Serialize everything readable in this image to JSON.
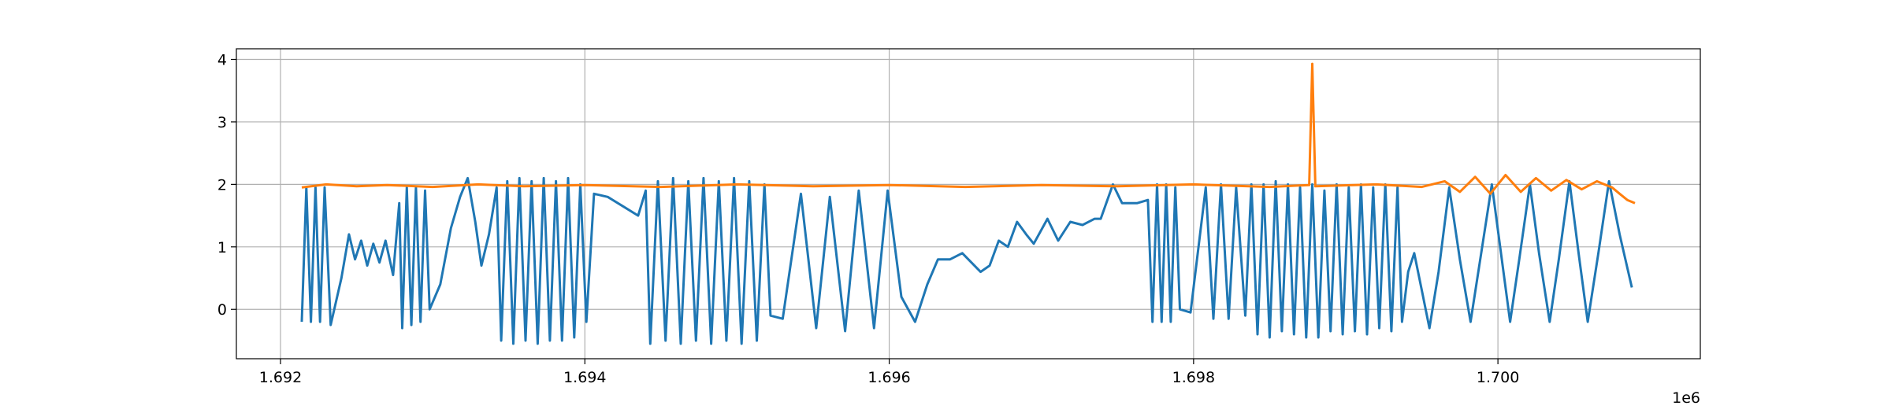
{
  "chart_data": {
    "type": "line",
    "x_offset_label": "1e6",
    "xlim": [
      1.69171,
      1.70133
    ],
    "ylim": [
      -0.79,
      4.17
    ],
    "xticks": [
      1.692,
      1.694,
      1.696,
      1.698,
      {
        "value": 1.7,
        "label": "1.700"
      }
    ],
    "yticks": [
      0,
      1,
      2,
      3,
      4
    ],
    "grid": true,
    "series": [
      {
        "color": "#1f77b4",
        "x": [
          1.69214,
          1.69217,
          1.6922,
          1.69223,
          1.69226,
          1.69229,
          1.69233,
          1.6924,
          1.69245,
          1.69249,
          1.69253,
          1.69257,
          1.69261,
          1.69265,
          1.69269,
          1.69274,
          1.69278,
          1.6928,
          1.69283,
          1.69286,
          1.69289,
          1.69292,
          1.69295,
          1.69298,
          1.69305,
          1.69312,
          1.69318,
          1.69323,
          1.69328,
          1.69332,
          1.69337,
          1.69342,
          1.69345,
          1.69349,
          1.69353,
          1.69357,
          1.69361,
          1.69365,
          1.69369,
          1.69373,
          1.69377,
          1.69381,
          1.69385,
          1.69389,
          1.69393,
          1.69397,
          1.69401,
          1.69406,
          1.69415,
          1.69425,
          1.69435,
          1.6944,
          1.69443,
          1.69448,
          1.69453,
          1.69458,
          1.69463,
          1.69468,
          1.69473,
          1.69478,
          1.69483,
          1.69488,
          1.69493,
          1.69498,
          1.69503,
          1.69508,
          1.69513,
          1.69518,
          1.69522,
          1.6953,
          1.69542,
          1.69552,
          1.69561,
          1.69571,
          1.6958,
          1.6959,
          1.69599,
          1.69608,
          1.69617,
          1.69625,
          1.69632,
          1.6964,
          1.69648,
          1.69654,
          1.6966,
          1.69666,
          1.69672,
          1.69678,
          1.69684,
          1.6969,
          1.69695,
          1.69704,
          1.69711,
          1.69719,
          1.69727,
          1.69735,
          1.69739,
          1.69747,
          1.69753,
          1.69763,
          1.6977,
          1.69773,
          1.69776,
          1.69779,
          1.69782,
          1.69785,
          1.69788,
          1.69791,
          1.69798,
          1.69808,
          1.69813,
          1.69818,
          1.69823,
          1.69828,
          1.69834,
          1.69838,
          1.69842,
          1.69846,
          1.6985,
          1.69854,
          1.69858,
          1.69862,
          1.69866,
          1.6987,
          1.69874,
          1.69878,
          1.69882,
          1.69886,
          1.6989,
          1.69894,
          1.69898,
          1.69902,
          1.69906,
          1.6991,
          1.69914,
          1.69918,
          1.69922,
          1.69926,
          1.6993,
          1.69934,
          1.69937,
          1.69941,
          1.69945,
          1.6995,
          1.69955,
          1.69961,
          1.69968,
          1.69975,
          1.69982,
          1.69989,
          1.69996,
          1.70002,
          1.70008,
          1.70014,
          1.70021,
          1.70027,
          1.70034,
          1.7004,
          1.70047,
          1.70053,
          1.70059,
          1.70066,
          1.70073,
          1.7008,
          1.70088
        ],
        "values": [
          -0.2,
          1.95,
          -0.2,
          1.95,
          -0.2,
          1.95,
          -0.25,
          0.5,
          1.2,
          0.8,
          1.1,
          0.7,
          1.05,
          0.75,
          1.1,
          0.55,
          1.7,
          -0.3,
          1.95,
          -0.25,
          1.95,
          -0.2,
          1.9,
          0.0,
          0.4,
          1.3,
          1.8,
          2.1,
          1.4,
          0.7,
          1.2,
          1.95,
          -0.5,
          2.05,
          -0.55,
          2.1,
          -0.5,
          2.05,
          -0.55,
          2.1,
          -0.5,
          2.05,
          -0.5,
          2.1,
          -0.45,
          2.0,
          -0.2,
          1.85,
          1.8,
          1.65,
          1.5,
          1.9,
          -0.55,
          2.05,
          -0.5,
          2.1,
          -0.55,
          2.05,
          -0.5,
          2.1,
          -0.55,
          2.05,
          -0.5,
          2.1,
          -0.55,
          2.05,
          -0.5,
          2.0,
          -0.1,
          -0.15,
          1.85,
          -0.3,
          1.8,
          -0.35,
          1.9,
          -0.3,
          1.9,
          0.2,
          -0.2,
          0.4,
          0.8,
          0.8,
          0.9,
          0.75,
          0.6,
          0.7,
          1.1,
          1.0,
          1.4,
          1.2,
          1.05,
          1.45,
          1.1,
          1.4,
          1.35,
          1.45,
          1.45,
          2.0,
          1.7,
          1.7,
          1.75,
          -0.2,
          2.0,
          -0.2,
          2.0,
          -0.2,
          1.95,
          0.0,
          -0.05,
          1.95,
          -0.15,
          2.0,
          -0.15,
          1.95,
          -0.1,
          2.0,
          -0.4,
          2.0,
          -0.45,
          2.05,
          -0.35,
          2.0,
          -0.4,
          1.95,
          -0.45,
          2.0,
          -0.45,
          1.9,
          -0.35,
          2.0,
          -0.4,
          1.95,
          -0.35,
          2.0,
          -0.4,
          1.95,
          -0.3,
          2.0,
          -0.35,
          1.95,
          -0.2,
          0.6,
          0.9,
          0.3,
          -0.3,
          0.6,
          1.95,
          0.8,
          -0.2,
          0.9,
          2.0,
          0.9,
          -0.2,
          0.8,
          2.0,
          0.9,
          -0.2,
          0.8,
          2.05,
          0.9,
          -0.2,
          0.9,
          2.05,
          1.2,
          0.35
        ]
      },
      {
        "color": "#ff7f0e",
        "x": [
          1.69214,
          1.6923,
          1.6925,
          1.6927,
          1.693,
          1.6933,
          1.6936,
          1.694,
          1.6945,
          1.695,
          1.6955,
          1.696,
          1.6965,
          1.697,
          1.6975,
          1.698,
          1.6985,
          1.69876,
          1.69878,
          1.6988,
          1.6992,
          1.6995,
          1.69965,
          1.69975,
          1.69985,
          1.69995,
          1.70005,
          1.70015,
          1.70025,
          1.70035,
          1.70045,
          1.70055,
          1.70065,
          1.70075,
          1.7008,
          1.70085,
          1.7009
        ],
        "values": [
          1.95,
          2.0,
          1.97,
          1.99,
          1.96,
          2.0,
          1.97,
          1.99,
          1.96,
          2.0,
          1.97,
          1.99,
          1.96,
          1.99,
          1.97,
          2.0,
          1.96,
          1.99,
          3.93,
          1.97,
          2.0,
          1.96,
          2.05,
          1.88,
          2.12,
          1.85,
          2.15,
          1.88,
          2.1,
          1.9,
          2.07,
          1.92,
          2.05,
          1.95,
          1.85,
          1.75,
          1.7
        ]
      }
    ]
  }
}
